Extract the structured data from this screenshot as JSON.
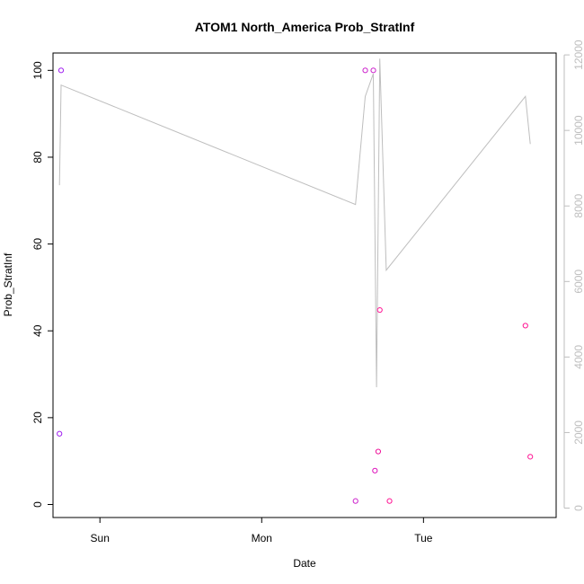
{
  "chart_data": {
    "type": "scatter",
    "title": "ATOM1 North_America Prob_StratInf",
    "xlabel": "Date",
    "ylabel": "Prob_StratInf",
    "x_ticks": [
      "Sun",
      "Mon",
      "Tue"
    ],
    "x_range_days": [
      -0.29,
      2.82
    ],
    "ylim": [
      -3,
      104
    ],
    "y_ticks": [
      0,
      20,
      40,
      60,
      80,
      100
    ],
    "y2lim": [
      -250,
      12050
    ],
    "y2_ticks": [
      0,
      2000,
      4000,
      6000,
      8000,
      10000,
      12000
    ],
    "grid": false,
    "colors": {
      "axis": "#000000",
      "line": "#bebebe",
      "right_axis": "#bebebe"
    },
    "series": [
      {
        "type": "points",
        "points": [
          {
            "x": -0.25,
            "y": 16.3,
            "color": "#a020f0"
          },
          {
            "x": -0.24,
            "y": 100,
            "color": "#a020f0"
          },
          {
            "x": 1.58,
            "y": 0.8,
            "color": "#cc22cc"
          },
          {
            "x": 1.64,
            "y": 100,
            "color": "#cc22cc"
          },
          {
            "x": 1.69,
            "y": 100,
            "color": "#cc22cc"
          },
          {
            "x": 1.7,
            "y": 7.8,
            "color": "#dd11bb"
          },
          {
            "x": 1.72,
            "y": 12.2,
            "color": "#ee1199"
          },
          {
            "x": 1.73,
            "y": 44.8,
            "color": "#ff1493"
          },
          {
            "x": 1.79,
            "y": 0.8,
            "color": "#ff1493"
          },
          {
            "x": 2.63,
            "y": 41.2,
            "color": "#ff1493"
          },
          {
            "x": 2.66,
            "y": 11.0,
            "color": "#ff1493"
          }
        ]
      },
      {
        "type": "line",
        "axis": "right",
        "color": "#bebebe",
        "points": [
          [
            -0.25,
            8550
          ],
          [
            -0.24,
            11200
          ],
          [
            1.58,
            8040
          ],
          [
            1.64,
            10900
          ],
          [
            1.69,
            11500
          ],
          [
            1.71,
            3200
          ],
          [
            1.73,
            11900
          ],
          [
            1.77,
            6300
          ],
          [
            2.63,
            10900
          ],
          [
            2.66,
            9640
          ]
        ]
      }
    ]
  }
}
